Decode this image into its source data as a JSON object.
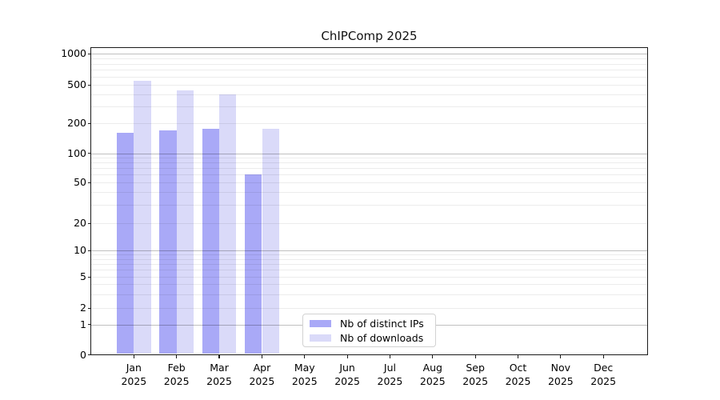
{
  "title": "ChIPComp 2025",
  "chart_data": {
    "type": "bar",
    "title": "ChIPComp 2025",
    "categories": [
      "Jan",
      "Feb",
      "Mar",
      "Apr",
      "May",
      "Jun",
      "Jul",
      "Aug",
      "Sep",
      "Oct",
      "Nov",
      "Dec"
    ],
    "x_tick_year": "2025",
    "series": [
      {
        "name": "Nb of distinct IPs",
        "color": "#a9a9f7",
        "values": [
          160,
          170,
          175,
          60,
          null,
          null,
          null,
          null,
          null,
          null,
          null,
          null
        ]
      },
      {
        "name": "Nb of downloads",
        "color": "#dadaf9",
        "values": [
          550,
          440,
          400,
          175,
          null,
          null,
          null,
          null,
          null,
          null,
          null,
          null
        ]
      }
    ],
    "y_ticks": [
      0,
      1,
      2,
      5,
      10,
      20,
      50,
      100,
      200,
      500,
      1000
    ],
    "ylim": [
      0,
      1000
    ],
    "y_scale": "log-like (symlog with 0 baseline)",
    "xlabel": "",
    "ylabel": "",
    "grid": true,
    "legend_position": "lower center"
  }
}
